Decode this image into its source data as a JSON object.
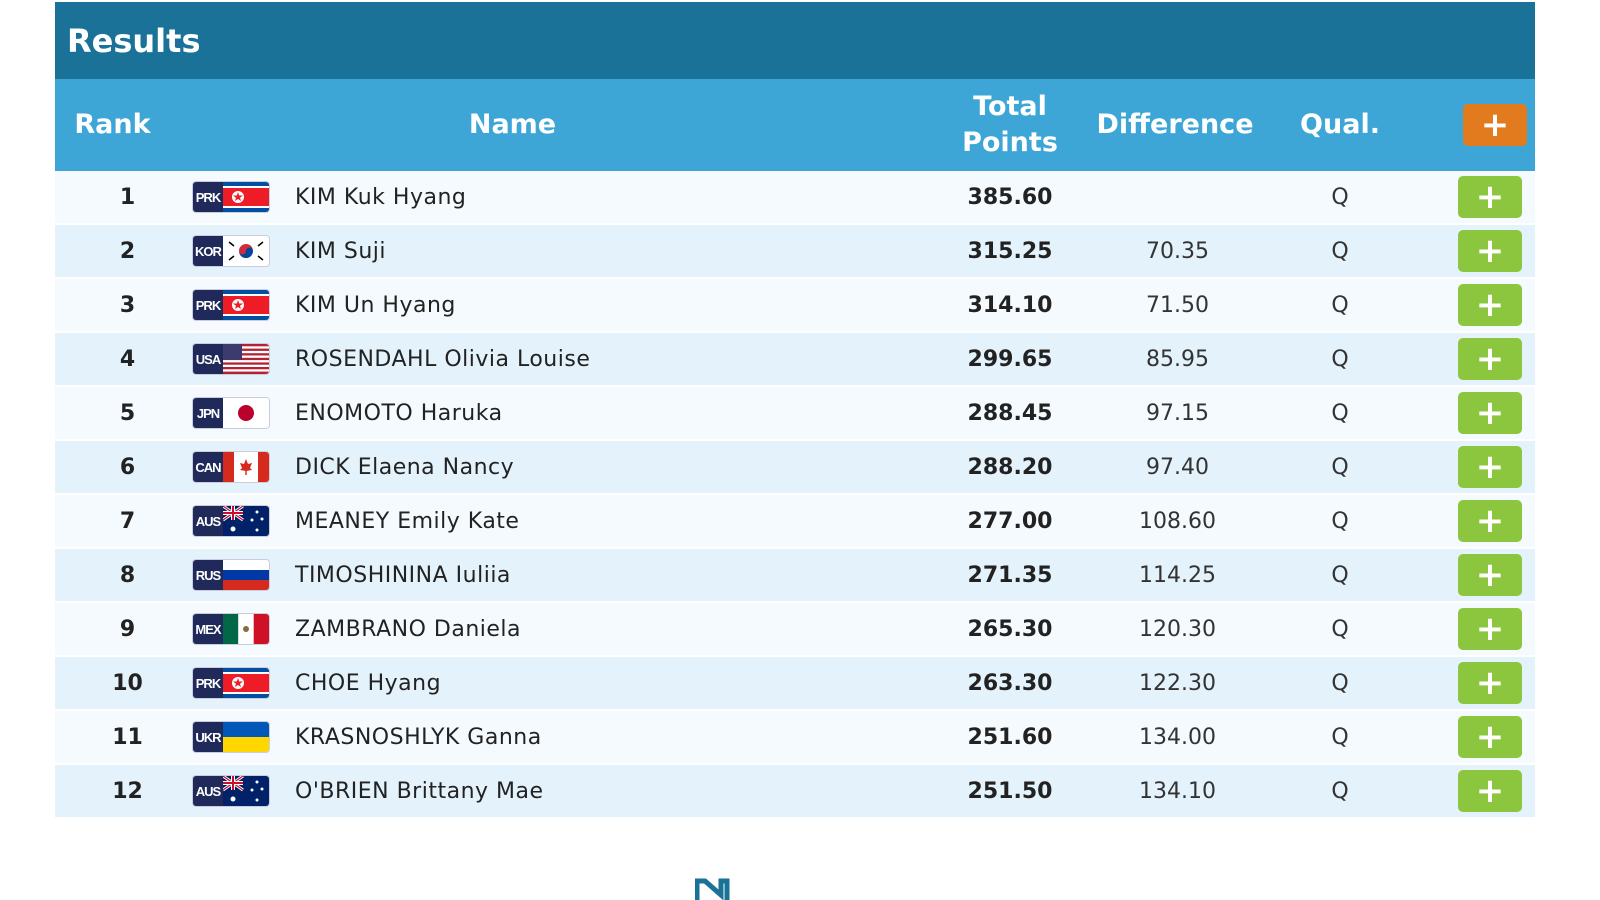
{
  "header": {
    "title": "Results"
  },
  "columns": {
    "rank": "Rank",
    "name": "Name",
    "total_line1": "Total",
    "total_line2": "Points",
    "difference": "Difference",
    "qual": "Qual.",
    "add_all": "+"
  },
  "colors": {
    "title_bar": "#1b7299",
    "header_row": "#3da6d7",
    "add_header": "#e27a1e",
    "add_row": "#8cc63f"
  },
  "rows": [
    {
      "rank": "1",
      "nation": "PRK",
      "flag": "prk",
      "name": "KIM Kuk Hyang",
      "total": "385.60",
      "difference": "",
      "qual": "Q",
      "add": "+"
    },
    {
      "rank": "2",
      "nation": "KOR",
      "flag": "kor",
      "name": "KIM Suji",
      "total": "315.25",
      "difference": "70.35",
      "qual": "Q",
      "add": "+"
    },
    {
      "rank": "3",
      "nation": "PRK",
      "flag": "prk",
      "name": "KIM Un Hyang",
      "total": "314.10",
      "difference": "71.50",
      "qual": "Q",
      "add": "+"
    },
    {
      "rank": "4",
      "nation": "USA",
      "flag": "usa",
      "name": "ROSENDAHL Olivia Louise",
      "total": "299.65",
      "difference": "85.95",
      "qual": "Q",
      "add": "+"
    },
    {
      "rank": "5",
      "nation": "JPN",
      "flag": "jpn",
      "name": "ENOMOTO Haruka",
      "total": "288.45",
      "difference": "97.15",
      "qual": "Q",
      "add": "+"
    },
    {
      "rank": "6",
      "nation": "CAN",
      "flag": "can",
      "name": "DICK Elaena Nancy",
      "total": "288.20",
      "difference": "97.40",
      "qual": "Q",
      "add": "+"
    },
    {
      "rank": "7",
      "nation": "AUS",
      "flag": "aus",
      "name": "MEANEY Emily Kate",
      "total": "277.00",
      "difference": "108.60",
      "qual": "Q",
      "add": "+"
    },
    {
      "rank": "8",
      "nation": "RUS",
      "flag": "rus",
      "name": "TIMOSHININA Iuliia",
      "total": "271.35",
      "difference": "114.25",
      "qual": "Q",
      "add": "+"
    },
    {
      "rank": "9",
      "nation": "MEX",
      "flag": "mex",
      "name": "ZAMBRANO Daniela",
      "total": "265.30",
      "difference": "120.30",
      "qual": "Q",
      "add": "+"
    },
    {
      "rank": "10",
      "nation": "PRK",
      "flag": "prk",
      "name": "CHOE Hyang",
      "total": "263.30",
      "difference": "122.30",
      "qual": "Q",
      "add": "+"
    },
    {
      "rank": "11",
      "nation": "UKR",
      "flag": "ukr",
      "name": "KRASNOSHLYK Ganna",
      "total": "251.60",
      "difference": "134.00",
      "qual": "Q",
      "add": "+"
    },
    {
      "rank": "12",
      "nation": "AUS",
      "flag": "aus",
      "name": "O'BRIEN Brittany Mae",
      "total": "251.50",
      "difference": "134.10",
      "qual": "Q",
      "add": "+"
    }
  ]
}
